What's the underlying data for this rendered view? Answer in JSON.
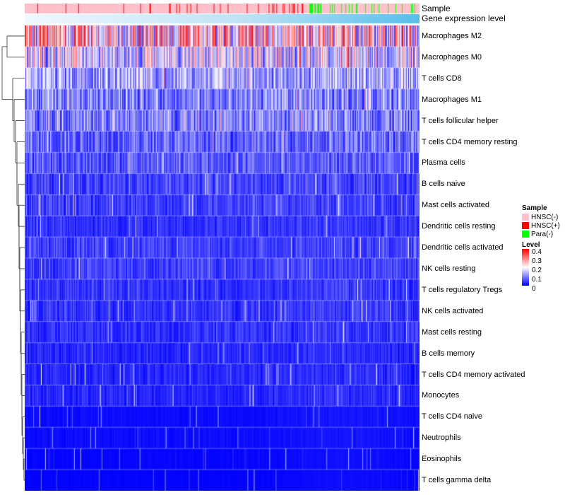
{
  "chart_data": {
    "type": "heatmap",
    "title": "",
    "annotations": {
      "sample_label": "Sample",
      "level_label": "Gene expression level"
    },
    "rows": [
      {
        "label": "Macrophages M2",
        "mean": 0.22
      },
      {
        "label": "Macrophages M0",
        "mean": 0.17
      },
      {
        "label": "T cells CD8",
        "mean": 0.13
      },
      {
        "label": "Macrophages M1",
        "mean": 0.1
      },
      {
        "label": "T cells follicular helper",
        "mean": 0.1
      },
      {
        "label": "T cells CD4 memory resting",
        "mean": 0.08
      },
      {
        "label": "Plasma cells",
        "mean": 0.07
      },
      {
        "label": "B cells naive",
        "mean": 0.05
      },
      {
        "label": "Mast cells activated",
        "mean": 0.05
      },
      {
        "label": "Dendritic cells resting",
        "mean": 0.04
      },
      {
        "label": "Dendritic cells activated",
        "mean": 0.05
      },
      {
        "label": "NK cells resting",
        "mean": 0.05
      },
      {
        "label": "T cells regulatory  Tregs",
        "mean": 0.04
      },
      {
        "label": "NK cells activated",
        "mean": 0.04
      },
      {
        "label": "Mast cells resting",
        "mean": 0.04
      },
      {
        "label": "B cells memory",
        "mean": 0.03
      },
      {
        "label": "T cells CD4 memory activated",
        "mean": 0.03
      },
      {
        "label": "Monocytes",
        "mean": 0.03
      },
      {
        "label": "T cells CD4 naive",
        "mean": 0.01
      },
      {
        "label": "Neutrophils",
        "mean": 0.01
      },
      {
        "label": "Eosinophils",
        "mean": 0.005
      },
      {
        "label": "T cells gamma delta",
        "mean": 0.003
      }
    ],
    "n_samples": 560,
    "legend": {
      "sample": {
        "title": "Sample",
        "items": [
          {
            "label": "HNSC(-)",
            "color": "#FFC0CB"
          },
          {
            "label": "HNSC(+)",
            "color": "#FF0000"
          },
          {
            "label": "Para(-)",
            "color": "#00FF00"
          }
        ]
      },
      "level": {
        "title": "Level",
        "ticks": [
          "0.4",
          "0.3",
          "0.2",
          "0.1",
          "0"
        ],
        "range": [
          0,
          0.4
        ],
        "colors": [
          "#0000FF",
          "#FFFFFF",
          "#FF0000"
        ]
      }
    }
  }
}
